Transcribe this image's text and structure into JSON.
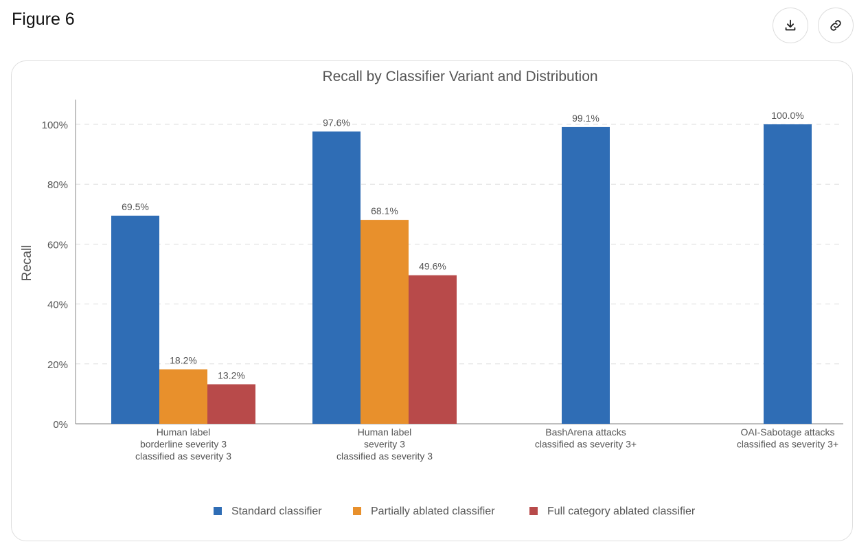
{
  "figure": {
    "title": "Figure 6"
  },
  "toolbar": {
    "download_icon": "download-icon",
    "link_icon": "link-icon"
  },
  "chart_data": {
    "type": "bar",
    "title": "Recall by Classifier Variant and Distribution",
    "ylabel": "Recall",
    "xlabel": "",
    "ylim": [
      0,
      100
    ],
    "yticks": [
      "0%",
      "20%",
      "40%",
      "60%",
      "80%",
      "100%"
    ],
    "grid": "horizontal-dashed",
    "legend_position": "bottom",
    "categories": [
      [
        "Human label",
        "borderline severity 3",
        "classified as severity 3"
      ],
      [
        "Human label",
        "severity 3",
        "classified as severity 3"
      ],
      [
        "BashArena attacks",
        "classified as severity 3+"
      ],
      [
        "OAI-Sabotage attacks",
        "classified as severity 3+"
      ]
    ],
    "series": [
      {
        "name": "Standard classifier",
        "color": "#2f6db5",
        "values": [
          69.5,
          97.6,
          99.1,
          100.0
        ]
      },
      {
        "name": "Partially ablated classifier",
        "color": "#e8902c",
        "values": [
          18.2,
          68.1,
          null,
          null
        ]
      },
      {
        "name": "Full category ablated classifier",
        "color": "#b84a4a",
        "values": [
          13.2,
          49.6,
          null,
          null
        ]
      }
    ],
    "value_labels": [
      [
        "69.5%",
        "97.6%",
        "99.1%",
        "100.0%"
      ],
      [
        "18.2%",
        "68.1%",
        null,
        null
      ],
      [
        "13.2%",
        "49.6%",
        null,
        null
      ]
    ]
  }
}
